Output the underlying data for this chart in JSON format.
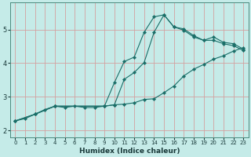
{
  "xlabel": "Humidex (Indice chaleur)",
  "bg_color": "#c5ebe8",
  "grid_color": "#d4a0a0",
  "line_color": "#1a6e68",
  "xlim": [
    -0.5,
    23.5
  ],
  "ylim": [
    1.8,
    5.8
  ],
  "xticks": [
    0,
    1,
    2,
    3,
    4,
    5,
    6,
    7,
    8,
    9,
    10,
    11,
    12,
    13,
    14,
    15,
    16,
    17,
    18,
    19,
    20,
    21,
    22,
    23
  ],
  "yticks": [
    2,
    3,
    4,
    5
  ],
  "curve1_x": [
    0,
    1,
    2,
    3,
    4,
    5,
    6,
    7,
    8,
    9,
    10,
    11,
    12,
    13,
    14,
    15,
    16,
    17,
    18,
    19,
    20,
    21,
    22,
    23
  ],
  "curve1_y": [
    2.28,
    2.35,
    2.48,
    2.62,
    2.72,
    2.68,
    2.72,
    2.68,
    2.68,
    2.72,
    2.76,
    2.78,
    2.82,
    2.92,
    2.94,
    3.12,
    3.32,
    3.62,
    3.82,
    3.96,
    4.12,
    4.22,
    4.36,
    4.46
  ],
  "curve2_x": [
    0,
    2,
    4,
    9,
    10,
    11,
    12,
    13,
    14,
    15,
    16,
    17,
    18,
    19,
    20,
    21,
    22,
    23
  ],
  "curve2_y": [
    2.28,
    2.48,
    2.72,
    2.72,
    3.42,
    4.05,
    4.18,
    4.92,
    5.38,
    5.44,
    5.08,
    5.02,
    4.82,
    4.68,
    4.78,
    4.62,
    4.58,
    4.42
  ],
  "curve3_x": [
    0,
    2,
    4,
    9,
    10,
    11,
    12,
    13,
    14,
    15,
    16,
    17,
    18,
    19,
    20,
    21,
    22,
    23
  ],
  "curve3_y": [
    2.28,
    2.48,
    2.72,
    2.72,
    2.76,
    3.52,
    3.72,
    4.02,
    4.92,
    5.44,
    5.08,
    4.98,
    4.78,
    4.68,
    4.68,
    4.58,
    4.52,
    4.38
  ]
}
